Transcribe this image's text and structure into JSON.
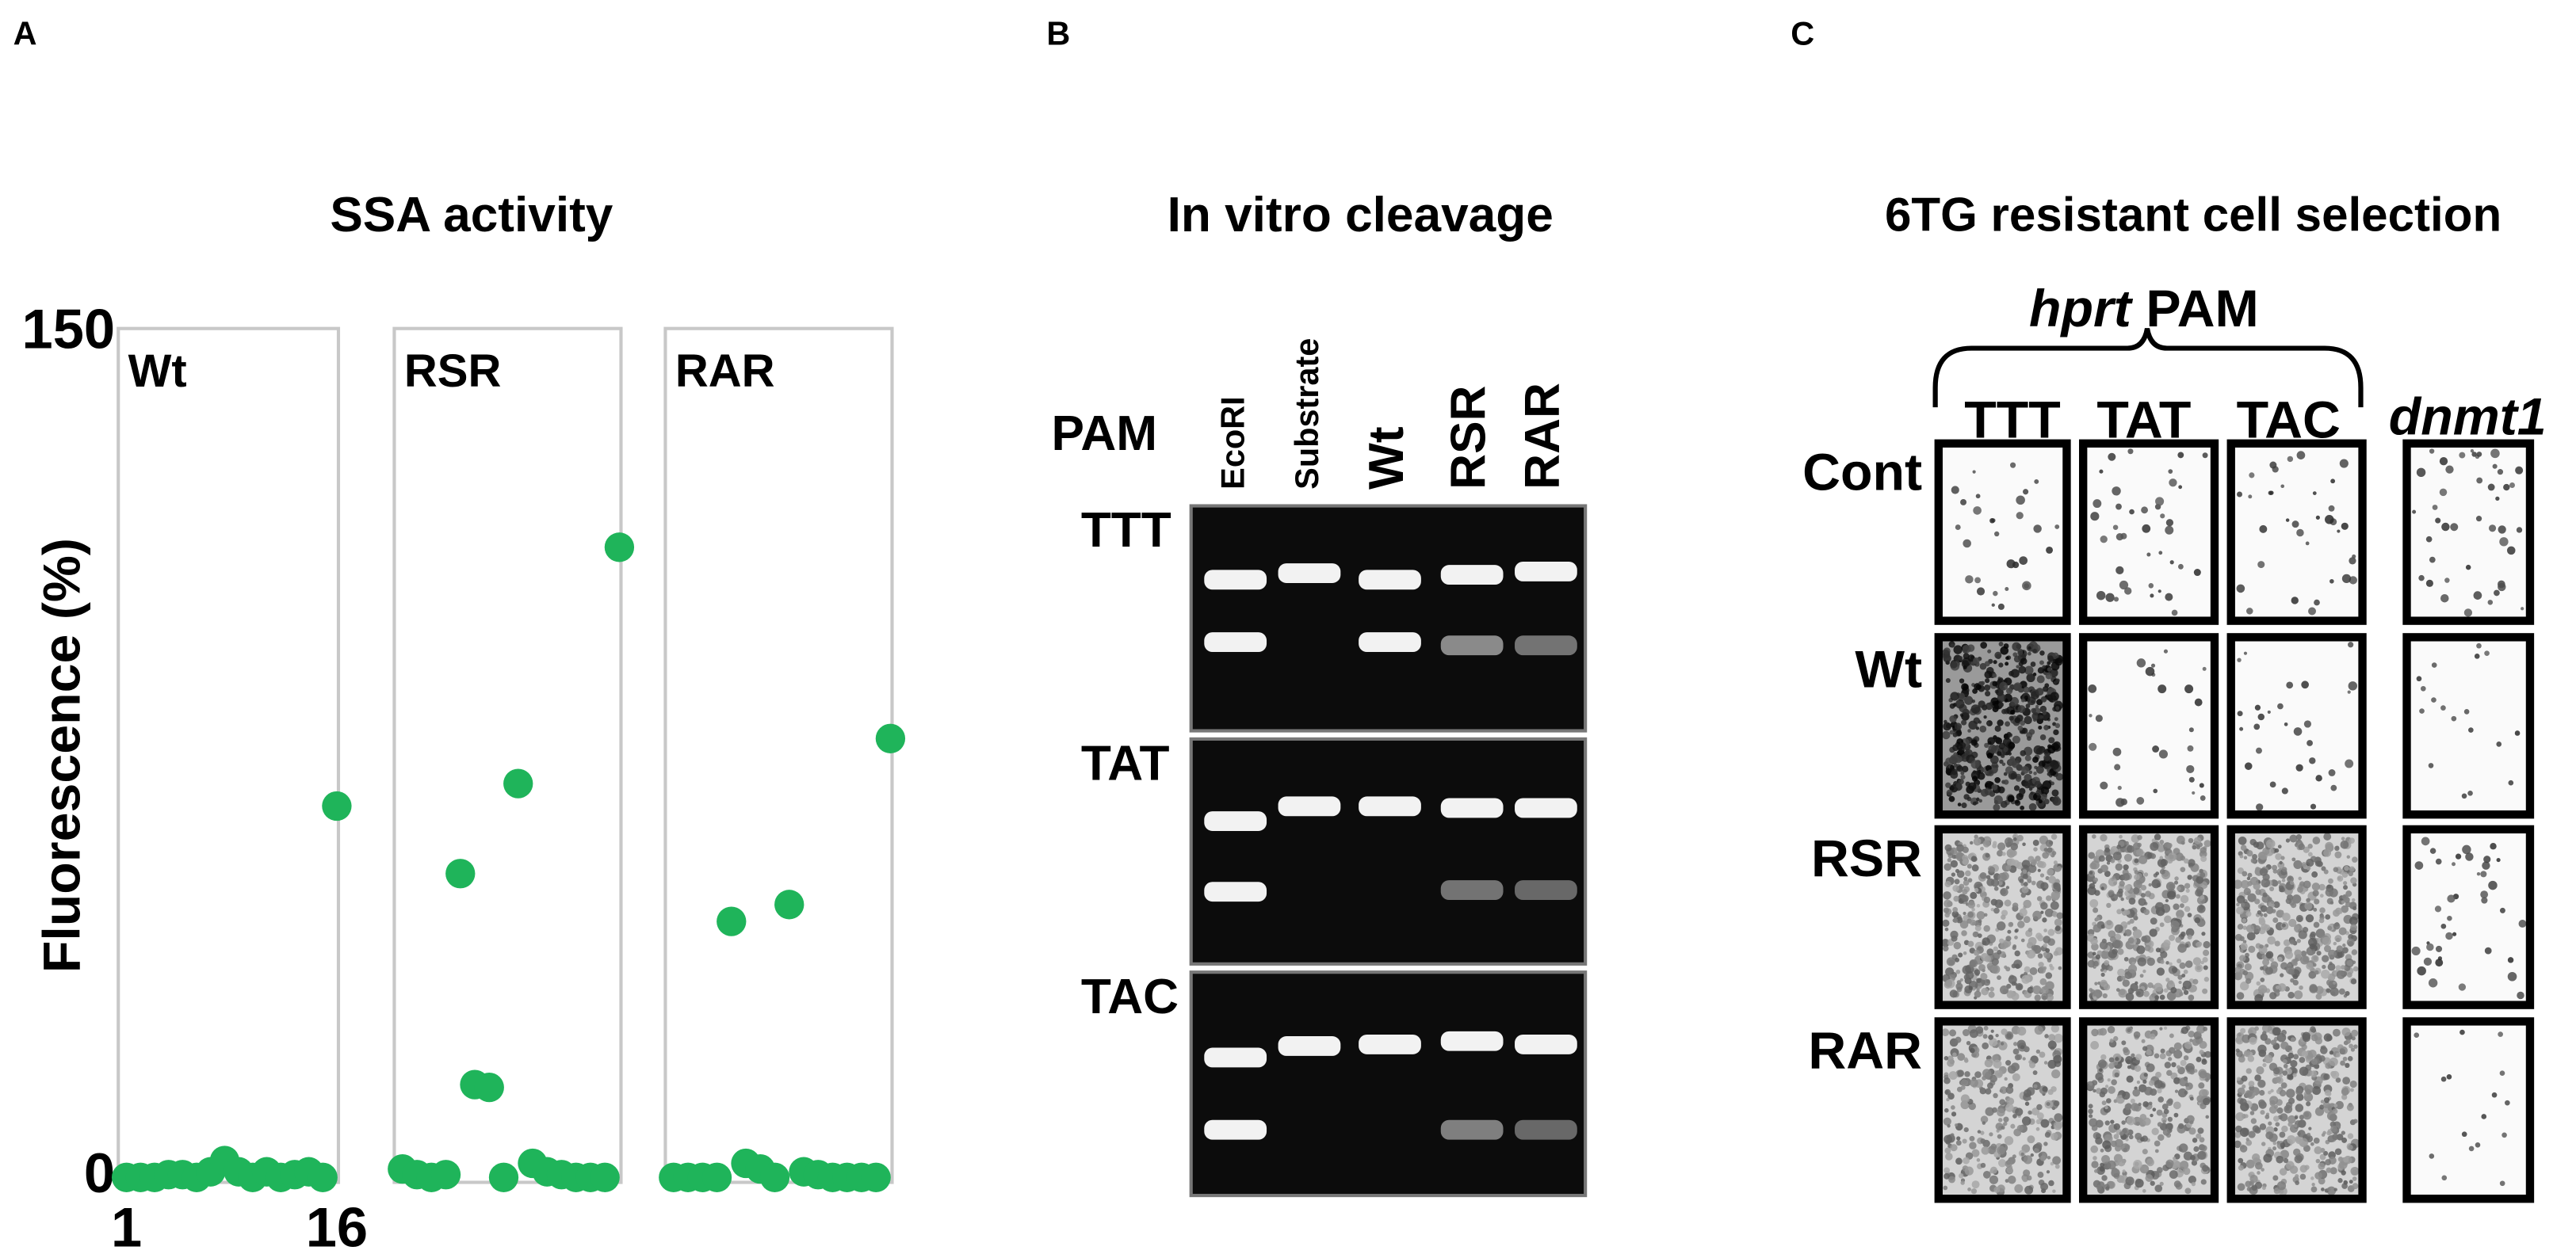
{
  "panel_labels": [
    "A",
    "B",
    "C"
  ],
  "chart_data": {
    "type": "scatter",
    "title": "SSA activity",
    "y_label": "Fluorescence (%)",
    "x": [
      1,
      2,
      3,
      4,
      5,
      6,
      7,
      8,
      9,
      10,
      11,
      12,
      13,
      14,
      15,
      16
    ],
    "xlim": [
      1,
      16
    ],
    "xticks": [
      1,
      16
    ],
    "ylim": [
      0,
      150
    ],
    "yticks": [
      0,
      150
    ],
    "grid": false,
    "series": [
      {
        "name": "Wt",
        "color": "#1fb45a",
        "values": [
          0,
          0,
          0,
          0.5,
          0.5,
          0,
          1,
          3,
          1,
          0,
          1,
          0,
          0.5,
          1,
          0,
          66
        ]
      },
      {
        "name": "RSR",
        "color": "#1fb45a",
        "values": [
          1.5,
          0.5,
          0,
          0.5,
          54,
          16.5,
          16,
          0,
          70,
          2.5,
          1,
          0.5,
          0,
          0,
          0,
          112
        ]
      },
      {
        "name": "RAR",
        "color": "#1fb45a",
        "values": [
          0,
          0,
          0,
          0,
          45.5,
          2.5,
          1.5,
          0,
          48.5,
          1,
          0.5,
          0,
          0,
          0,
          0,
          78
        ]
      }
    ]
  },
  "gel": {
    "title": "In vitro cleavage",
    "row_header": "PAM",
    "lanes": [
      "EcoRI",
      "Substrate",
      "Wt",
      "RSR",
      "RAR"
    ],
    "rows": [
      "TTT",
      "TAT",
      "TAC"
    ]
  },
  "selection": {
    "title": "6TG resistant cell selection",
    "group_italic": "hprt",
    "group": "PAM",
    "columns": [
      "TTT",
      "TAT",
      "TAC"
    ],
    "extra_column": "dnmt1",
    "rows": [
      "Cont",
      "Wt",
      "RSR",
      "RAR"
    ]
  }
}
